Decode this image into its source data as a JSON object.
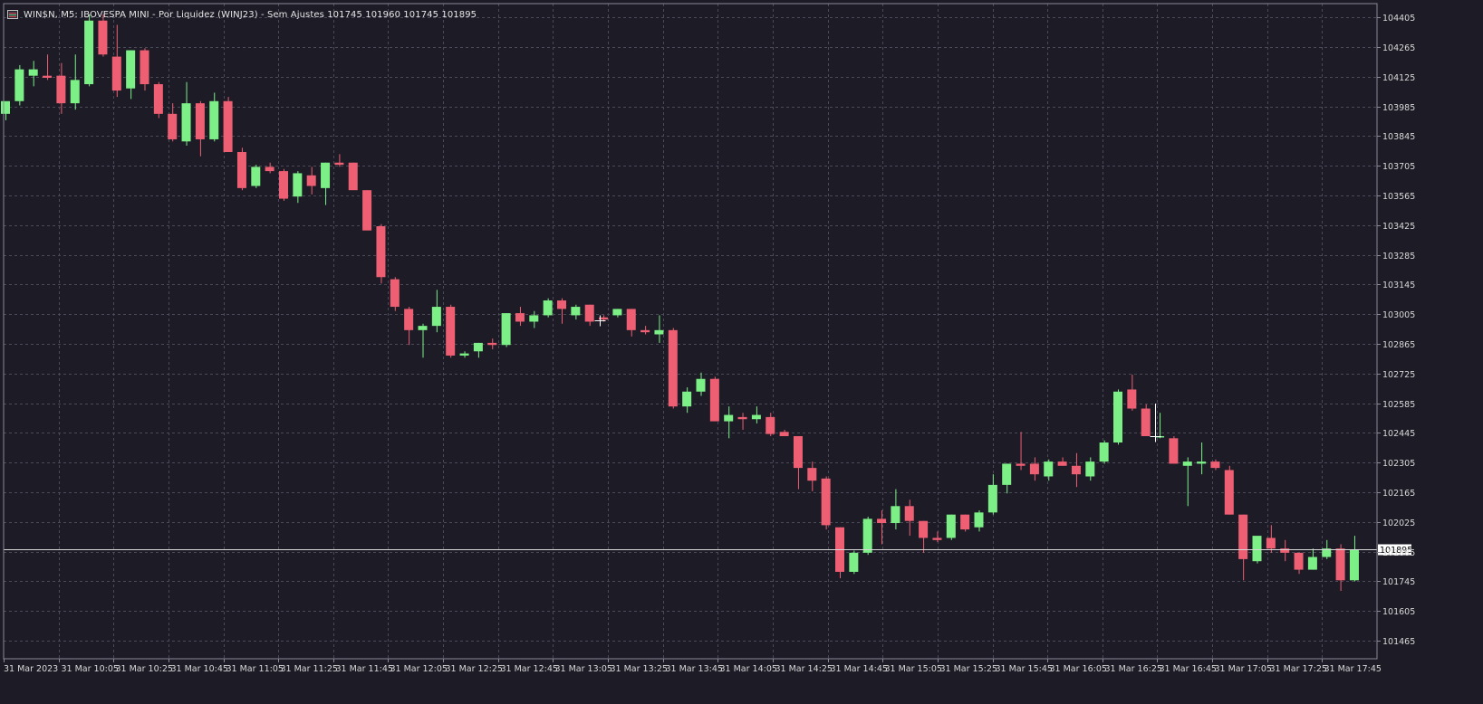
{
  "window": {
    "title": "WIN$N, M5:  IBOVESPA MINI - Por Liquidez (WINJ23) - Sem Ajustes  101745 101960 101745 101895",
    "icon": "chart-window-icon"
  },
  "colors": {
    "background": "#1c1b26",
    "grid": "#4a4a58",
    "bull": "#7cef86",
    "bear": "#ef5f73",
    "axis_text": "#d9d9d9",
    "price_line": "#d9d9d9"
  },
  "chart_data": {
    "type": "candlestick",
    "symbol": "WIN$N",
    "timeframe": "M5",
    "ohlc": [
      101745,
      101960,
      101745,
      101895
    ],
    "current_price": 101895,
    "current_price_label": "101895",
    "ylim": [
      101380,
      104470
    ],
    "y_ticks": [
      "104405",
      "104265",
      "104125",
      "103985",
      "103845",
      "103705",
      "103565",
      "103425",
      "103285",
      "103145",
      "103005",
      "102865",
      "102725",
      "102585",
      "102445",
      "102305",
      "102165",
      "102025",
      "101885",
      "101745",
      "101605",
      "101465"
    ],
    "y_tick_values": [
      104405,
      104265,
      104125,
      103985,
      103845,
      103705,
      103565,
      103425,
      103285,
      103145,
      103005,
      102865,
      102725,
      102585,
      102445,
      102305,
      102165,
      102025,
      101885,
      101745,
      101605,
      101465
    ],
    "x_labels": [
      "31 Mar 2023",
      "31 Mar 10:05",
      "31 Mar 10:25",
      "31 Mar 10:45",
      "31 Mar 11:05",
      "31 Mar 11:25",
      "31 Mar 11:45",
      "31 Mar 12:05",
      "31 Mar 12:25",
      "31 Mar 12:45",
      "31 Mar 13:05",
      "31 Mar 13:25",
      "31 Mar 13:45",
      "31 Mar 14:05",
      "31 Mar 14:25",
      "31 Mar 14:45",
      "31 Mar 15:05",
      "31 Mar 15:25",
      "31 Mar 15:45",
      "31 Mar 16:05",
      "31 Mar 16:25",
      "31 Mar 16:45",
      "31 Mar 17:05",
      "31 Mar 17:25",
      "31 Mar 17:45"
    ],
    "grid": true,
    "candles": [
      {
        "o": 103950,
        "h": 104000,
        "l": 103920,
        "c": 104010
      },
      {
        "o": 104010,
        "h": 104180,
        "l": 103990,
        "c": 104160
      },
      {
        "o": 104130,
        "h": 104200,
        "l": 104080,
        "c": 104160
      },
      {
        "o": 104130,
        "h": 104230,
        "l": 104110,
        "c": 104120
      },
      {
        "o": 104130,
        "h": 104190,
        "l": 103950,
        "c": 104000
      },
      {
        "o": 104000,
        "h": 104230,
        "l": 103970,
        "c": 104110
      },
      {
        "o": 104090,
        "h": 104420,
        "l": 104080,
        "c": 104390
      },
      {
        "o": 104390,
        "h": 104420,
        "l": 104220,
        "c": 104230
      },
      {
        "o": 104220,
        "h": 104370,
        "l": 104030,
        "c": 104060
      },
      {
        "o": 104070,
        "h": 104250,
        "l": 104020,
        "c": 104250
      },
      {
        "o": 104250,
        "h": 104260,
        "l": 104060,
        "c": 104090
      },
      {
        "o": 104090,
        "h": 104100,
        "l": 103930,
        "c": 103950
      },
      {
        "o": 103950,
        "h": 104000,
        "l": 103820,
        "c": 103830
      },
      {
        "o": 103820,
        "h": 104100,
        "l": 103800,
        "c": 104000
      },
      {
        "o": 104000,
        "h": 104010,
        "l": 103750,
        "c": 103830
      },
      {
        "o": 103830,
        "h": 104050,
        "l": 103820,
        "c": 104010
      },
      {
        "o": 104010,
        "h": 104030,
        "l": 103770,
        "c": 103770
      },
      {
        "o": 103770,
        "h": 103790,
        "l": 103590,
        "c": 103600
      },
      {
        "o": 103610,
        "h": 103710,
        "l": 103600,
        "c": 103700
      },
      {
        "o": 103700,
        "h": 103720,
        "l": 103670,
        "c": 103680
      },
      {
        "o": 103680,
        "h": 103690,
        "l": 103540,
        "c": 103550
      },
      {
        "o": 103560,
        "h": 103680,
        "l": 103530,
        "c": 103670
      },
      {
        "o": 103660,
        "h": 103700,
        "l": 103570,
        "c": 103610
      },
      {
        "o": 103600,
        "h": 103720,
        "l": 103520,
        "c": 103720
      },
      {
        "o": 103720,
        "h": 103760,
        "l": 103700,
        "c": 103710
      },
      {
        "o": 103720,
        "h": 103720,
        "l": 103600,
        "c": 103590
      },
      {
        "o": 103590,
        "h": 103590,
        "l": 103410,
        "c": 103400
      },
      {
        "o": 103420,
        "h": 103430,
        "l": 103150,
        "c": 103180
      },
      {
        "o": 103170,
        "h": 103180,
        "l": 103020,
        "c": 103040
      },
      {
        "o": 103030,
        "h": 103040,
        "l": 102860,
        "c": 102930
      },
      {
        "o": 102930,
        "h": 102960,
        "l": 102800,
        "c": 102950
      },
      {
        "o": 102950,
        "h": 103120,
        "l": 102920,
        "c": 103040
      },
      {
        "o": 103040,
        "h": 103050,
        "l": 102800,
        "c": 102810
      },
      {
        "o": 102810,
        "h": 102830,
        "l": 102800,
        "c": 102820
      },
      {
        "o": 102830,
        "h": 102870,
        "l": 102800,
        "c": 102870
      },
      {
        "o": 102870,
        "h": 102890,
        "l": 102840,
        "c": 102860
      },
      {
        "o": 102860,
        "h": 103010,
        "l": 102850,
        "c": 103010
      },
      {
        "o": 103010,
        "h": 103040,
        "l": 102950,
        "c": 102970
      },
      {
        "o": 102970,
        "h": 103020,
        "l": 102940,
        "c": 103000
      },
      {
        "o": 103000,
        "h": 103080,
        "l": 102990,
        "c": 103070
      },
      {
        "o": 103070,
        "h": 103080,
        "l": 102960,
        "c": 103030
      },
      {
        "o": 103000,
        "h": 103050,
        "l": 102980,
        "c": 103040
      },
      {
        "o": 103050,
        "h": 103050,
        "l": 102950,
        "c": 102970
      },
      {
        "o": 102990,
        "h": 103000,
        "l": 102970,
        "c": 102980
      },
      {
        "o": 103000,
        "h": 103030,
        "l": 102990,
        "c": 103030
      },
      {
        "o": 103030,
        "h": 103030,
        "l": 102900,
        "c": 102930
      },
      {
        "o": 102930,
        "h": 102950,
        "l": 102910,
        "c": 102920
      },
      {
        "o": 102910,
        "h": 103000,
        "l": 102870,
        "c": 102930
      },
      {
        "o": 102930,
        "h": 102940,
        "l": 102560,
        "c": 102570
      },
      {
        "o": 102570,
        "h": 102660,
        "l": 102540,
        "c": 102640
      },
      {
        "o": 102640,
        "h": 102730,
        "l": 102620,
        "c": 102700
      },
      {
        "o": 102700,
        "h": 102710,
        "l": 102500,
        "c": 102500
      },
      {
        "o": 102500,
        "h": 102570,
        "l": 102420,
        "c": 102530
      },
      {
        "o": 102520,
        "h": 102540,
        "l": 102460,
        "c": 102510
      },
      {
        "o": 102510,
        "h": 102570,
        "l": 102490,
        "c": 102530
      },
      {
        "o": 102520,
        "h": 102540,
        "l": 102430,
        "c": 102440
      },
      {
        "o": 102450,
        "h": 102460,
        "l": 102440,
        "c": 102430
      },
      {
        "o": 102430,
        "h": 102430,
        "l": 102180,
        "c": 102280
      },
      {
        "o": 102280,
        "h": 102310,
        "l": 102170,
        "c": 102220
      },
      {
        "o": 102230,
        "h": 102240,
        "l": 101990,
        "c": 102010
      },
      {
        "o": 102000,
        "h": 102000,
        "l": 101760,
        "c": 101790
      },
      {
        "o": 101790,
        "h": 101890,
        "l": 101780,
        "c": 101880
      },
      {
        "o": 101880,
        "h": 102050,
        "l": 101870,
        "c": 102040
      },
      {
        "o": 102040,
        "h": 102080,
        "l": 101920,
        "c": 102020
      },
      {
        "o": 102020,
        "h": 102180,
        "l": 101990,
        "c": 102100
      },
      {
        "o": 102100,
        "h": 102130,
        "l": 101960,
        "c": 102030
      },
      {
        "o": 102030,
        "h": 102030,
        "l": 101880,
        "c": 101950
      },
      {
        "o": 101950,
        "h": 101980,
        "l": 101930,
        "c": 101940
      },
      {
        "o": 101950,
        "h": 102060,
        "l": 101940,
        "c": 102060
      },
      {
        "o": 102060,
        "h": 102060,
        "l": 101980,
        "c": 101990
      },
      {
        "o": 102000,
        "h": 102080,
        "l": 101980,
        "c": 102070
      },
      {
        "o": 102070,
        "h": 102250,
        "l": 102060,
        "c": 102200
      },
      {
        "o": 102200,
        "h": 102300,
        "l": 102160,
        "c": 102300
      },
      {
        "o": 102300,
        "h": 102450,
        "l": 102270,
        "c": 102290
      },
      {
        "o": 102300,
        "h": 102330,
        "l": 102220,
        "c": 102250
      },
      {
        "o": 102240,
        "h": 102320,
        "l": 102220,
        "c": 102310
      },
      {
        "o": 102310,
        "h": 102330,
        "l": 102290,
        "c": 102290
      },
      {
        "o": 102290,
        "h": 102350,
        "l": 102190,
        "c": 102250
      },
      {
        "o": 102240,
        "h": 102330,
        "l": 102220,
        "c": 102310
      },
      {
        "o": 102310,
        "h": 102410,
        "l": 102300,
        "c": 102400
      },
      {
        "o": 102400,
        "h": 102650,
        "l": 102390,
        "c": 102640
      },
      {
        "o": 102650,
        "h": 102720,
        "l": 102550,
        "c": 102560
      },
      {
        "o": 102560,
        "h": 102580,
        "l": 102430,
        "c": 102430
      },
      {
        "o": 102430,
        "h": 102540,
        "l": 102420,
        "c": 102430
      },
      {
        "o": 102420,
        "h": 102430,
        "l": 102300,
        "c": 102300
      },
      {
        "o": 102290,
        "h": 102330,
        "l": 102100,
        "c": 102310
      },
      {
        "o": 102300,
        "h": 102400,
        "l": 102250,
        "c": 102310
      },
      {
        "o": 102310,
        "h": 102320,
        "l": 102270,
        "c": 102280
      },
      {
        "o": 102270,
        "h": 102290,
        "l": 102060,
        "c": 102060
      },
      {
        "o": 102060,
        "h": 102060,
        "l": 101750,
        "c": 101850
      },
      {
        "o": 101840,
        "h": 101950,
        "l": 101830,
        "c": 101960
      },
      {
        "o": 101950,
        "h": 102010,
        "l": 101880,
        "c": 101900
      },
      {
        "o": 101900,
        "h": 101940,
        "l": 101840,
        "c": 101880
      },
      {
        "o": 101880,
        "h": 101880,
        "l": 101780,
        "c": 101800
      },
      {
        "o": 101800,
        "h": 101900,
        "l": 101800,
        "c": 101860
      },
      {
        "o": 101860,
        "h": 101940,
        "l": 101850,
        "c": 101900
      },
      {
        "o": 101900,
        "h": 101920,
        "l": 101700,
        "c": 101750
      },
      {
        "o": 101750,
        "h": 101960,
        "l": 101745,
        "c": 101895
      }
    ]
  }
}
